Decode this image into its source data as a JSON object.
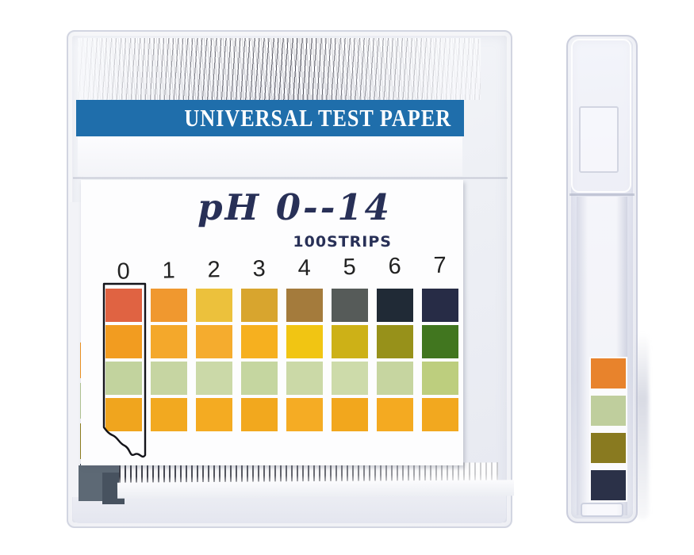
{
  "product": {
    "banner_title": "UNIVERSAL TEST PAPER",
    "range_title": "pH 0--14",
    "count_label": "100STRIPS"
  },
  "colors": {
    "banner_bg": "#1F6EAB",
    "banner_text": "#FFFFFF",
    "title_navy": "#283057",
    "number_text": "#222222",
    "card_bg": "#FDFDFE",
    "slate_block": "#5D6975",
    "slate_block_dark": "#47525F"
  },
  "chart_data": {
    "type": "heatmap",
    "title": "Universal pH test paper reference color chart (visible columns pH 0-7)",
    "columns": [
      "0",
      "1",
      "2",
      "3",
      "4",
      "5",
      "6",
      "7"
    ],
    "row_names": [
      "indicator-band-1",
      "indicator-band-2",
      "indicator-band-3",
      "indicator-band-4"
    ],
    "rows": [
      [
        "#E06342",
        "#F0982F",
        "#ECC13C",
        "#D8A52E",
        "#A47B3C",
        "#565B59",
        "#202A36",
        "#272C46"
      ],
      [
        "#F29C20",
        "#F4A82B",
        "#F5AC2E",
        "#F6B01F",
        "#F1C513",
        "#CDB117",
        "#97911A",
        "#41761F"
      ],
      [
        "#C2D39E",
        "#C6D5A2",
        "#CBD9A8",
        "#C5D6A0",
        "#CBD9A7",
        "#CDDBAA",
        "#C6D5A0",
        "#BDCE7E"
      ],
      [
        "#F0A51E",
        "#F2A920",
        "#F4AB22",
        "#F2A81E",
        "#F5AC24",
        "#F2A71D",
        "#F4AA21",
        "#F2A81F"
      ]
    ],
    "annotation": "column for pH 0 is outlined as a sample strip with a torn bottom edge"
  },
  "side_view": {
    "strip_colors": [
      "#E8832C",
      "#BFCE9D",
      "#897A20",
      "#2B3148"
    ]
  },
  "front_box": {
    "peek_strip_colors": [
      "#F0941F",
      "#B3C693",
      "#8F7F1A",
      "#3A4354"
    ]
  }
}
